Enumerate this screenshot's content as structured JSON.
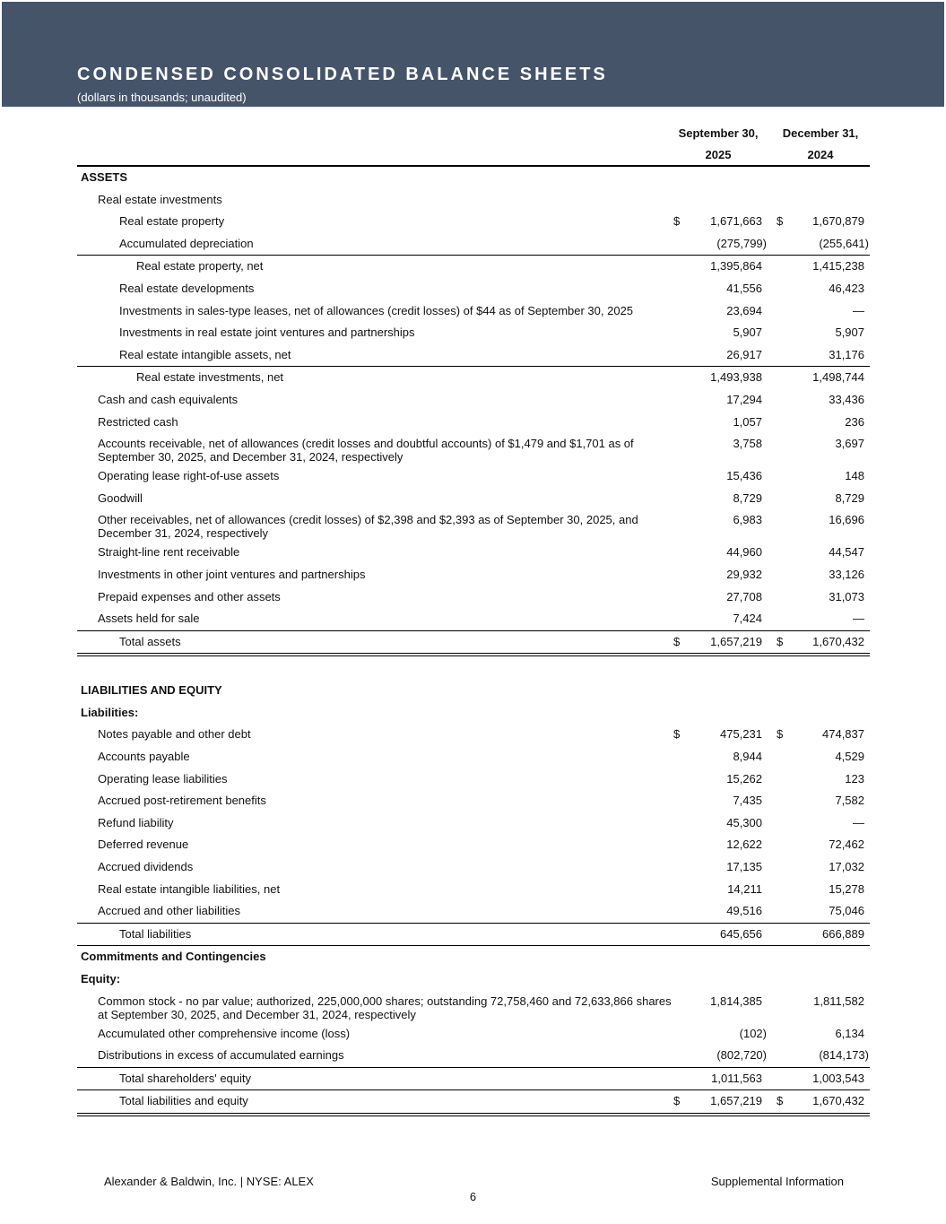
{
  "header": {
    "title": "CONDENSED CONSOLIDATED BALANCE SHEETS",
    "subtitle": "(dollars in thousands; unaudited)",
    "band_color": "#46546a"
  },
  "columns": [
    {
      "line1": "September 30,",
      "line2": "2025"
    },
    {
      "line1": "December 31,",
      "line2": "2024"
    }
  ],
  "rows": [
    {
      "label": "ASSETS",
      "indent": 0,
      "bold": true
    },
    {
      "label": "Real estate investments",
      "indent": 1
    },
    {
      "label": "Real estate property",
      "indent": 2,
      "c1": "1,671,663",
      "c2": "1,670,879",
      "dollar": true
    },
    {
      "label": "Accumulated depreciation",
      "indent": 2,
      "c1": "(275,799)",
      "c2": "(255,641)",
      "border": "single"
    },
    {
      "label": "Real estate property, net",
      "indent": 3,
      "c1": "1,395,864",
      "c2": "1,415,238"
    },
    {
      "label": "Real estate developments",
      "indent": 2,
      "c1": "41,556",
      "c2": "46,423"
    },
    {
      "label": "Investments in sales-type leases, net of allowances (credit losses) of $44 as of September 30, 2025",
      "indent": 2,
      "c1": "23,694",
      "c2": "—"
    },
    {
      "label": "Investments in real estate joint ventures and partnerships",
      "indent": 2,
      "c1": "5,907",
      "c2": "5,907"
    },
    {
      "label": "Real estate intangible assets, net",
      "indent": 2,
      "c1": "26,917",
      "c2": "31,176",
      "border": "single"
    },
    {
      "label": "Real estate investments, net",
      "indent": 3,
      "c1": "1,493,938",
      "c2": "1,498,744"
    },
    {
      "label": "Cash and cash equivalents",
      "indent": 1,
      "c1": "17,294",
      "c2": "33,436"
    },
    {
      "label": "Restricted cash",
      "indent": 1,
      "c1": "1,057",
      "c2": "236"
    },
    {
      "label": "Accounts receivable, net of allowances (credit losses and doubtful accounts) of $1,479 and $1,701 as of September 30, 2025, and December 31, 2024, respectively",
      "indent": 1,
      "c1": "3,758",
      "c2": "3,697",
      "tall": true
    },
    {
      "label": "Operating lease right-of-use assets",
      "indent": 1,
      "c1": "15,436",
      "c2": "148"
    },
    {
      "label": "Goodwill",
      "indent": 1,
      "c1": "8,729",
      "c2": "8,729"
    },
    {
      "label": "Other receivables, net of allowances (credit losses) of $2,398 and $2,393 as of September 30, 2025, and December 31, 2024, respectively",
      "indent": 1,
      "c1": "6,983",
      "c2": "16,696",
      "tall": true
    },
    {
      "label": "Straight-line rent receivable",
      "indent": 1,
      "c1": "44,960",
      "c2": "44,547"
    },
    {
      "label": "Investments in other joint ventures and partnerships",
      "indent": 1,
      "c1": "29,932",
      "c2": "33,126"
    },
    {
      "label": "Prepaid expenses and other assets",
      "indent": 1,
      "c1": "27,708",
      "c2": "31,073"
    },
    {
      "label": "Assets held for sale",
      "indent": 1,
      "c1": "7,424",
      "c2": "—",
      "border": "single"
    },
    {
      "label": "Total assets",
      "indent": 2,
      "c1": "1,657,219",
      "c2": "1,670,432",
      "dollar": true,
      "border": "double"
    },
    {
      "spacer": true
    },
    {
      "label": "LIABILITIES AND EQUITY",
      "indent": 0,
      "bold": true
    },
    {
      "label": "Liabilities:",
      "indent": 0,
      "bold": true
    },
    {
      "label": "Notes payable and other debt",
      "indent": 1,
      "c1": "475,231",
      "c2": "474,837",
      "dollar": true
    },
    {
      "label": "Accounts payable",
      "indent": 1,
      "c1": "8,944",
      "c2": "4,529"
    },
    {
      "label": "Operating lease liabilities",
      "indent": 1,
      "c1": "15,262",
      "c2": "123"
    },
    {
      "label": "Accrued post-retirement benefits",
      "indent": 1,
      "c1": "7,435",
      "c2": "7,582"
    },
    {
      "label": "Refund liability",
      "indent": 1,
      "c1": "45,300",
      "c2": "—"
    },
    {
      "label": "Deferred revenue",
      "indent": 1,
      "c1": "12,622",
      "c2": "72,462"
    },
    {
      "label": "Accrued dividends",
      "indent": 1,
      "c1": "17,135",
      "c2": "17,032"
    },
    {
      "label": "Real estate intangible liabilities, net",
      "indent": 1,
      "c1": "14,211",
      "c2": "15,278"
    },
    {
      "label": "Accrued and other liabilities",
      "indent": 1,
      "c1": "49,516",
      "c2": "75,046",
      "border": "single"
    },
    {
      "label": "Total liabilities",
      "indent": 2,
      "c1": "645,656",
      "c2": "666,889",
      "border": "single"
    },
    {
      "label": "Commitments and Contingencies",
      "indent": 0,
      "bold": true
    },
    {
      "label": "Equity:",
      "indent": 0,
      "bold": true
    },
    {
      "label": "Common stock - no par value; authorized, 225,000,000 shares; outstanding 72,758,460 and 72,633,866 shares at September 30, 2025, and December 31, 2024, respectively",
      "indent": 1,
      "c1": "1,814,385",
      "c2": "1,811,582",
      "tall": true
    },
    {
      "label": "Accumulated other comprehensive income (loss)",
      "indent": 1,
      "c1": "(102)",
      "c2": "6,134"
    },
    {
      "label": "Distributions in excess of accumulated earnings",
      "indent": 1,
      "c1": "(802,720)",
      "c2": "(814,173)",
      "border": "single"
    },
    {
      "label": "Total shareholders' equity",
      "indent": 2,
      "c1": "1,011,563",
      "c2": "1,003,543",
      "border": "single"
    },
    {
      "label": "Total liabilities and equity",
      "indent": 2,
      "c1": "1,657,219",
      "c2": "1,670,432",
      "dollar": true,
      "border": "double"
    }
  ],
  "currency_symbol": "$",
  "footer": {
    "left": "Alexander & Baldwin, Inc. | NYSE: ALEX",
    "right": "Supplemental Information",
    "page": "6"
  }
}
